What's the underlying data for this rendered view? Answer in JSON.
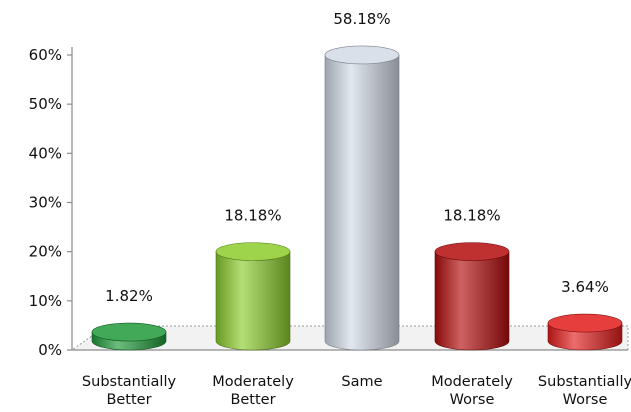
{
  "chart_data": {
    "type": "bar",
    "categories": [
      [
        "Substantially",
        "Better"
      ],
      [
        "Moderately",
        "Better"
      ],
      [
        "Same"
      ],
      [
        "Moderately",
        "Worse"
      ],
      [
        "Substantially",
        "Worse"
      ]
    ],
    "values": [
      1.82,
      18.18,
      58.18,
      18.18,
      3.64
    ],
    "data_labels": [
      "1.82%",
      "18.18%",
      "58.18%",
      "18.18%",
      "3.64%"
    ],
    "y_ticks": [
      "0%",
      "10%",
      "20%",
      "30%",
      "40%",
      "50%",
      "60%"
    ],
    "ylim": [
      0,
      60
    ],
    "bar_colors": [
      "#1f9a3a",
      "#8ccc2c",
      "#d2dbe6",
      "#b40d0d",
      "#e21b1b"
    ],
    "grid": false,
    "legend": "none"
  }
}
